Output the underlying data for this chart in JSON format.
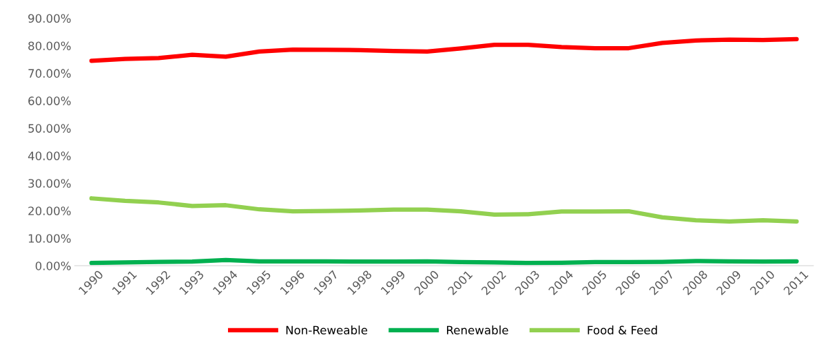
{
  "chart_data": {
    "type": "line",
    "categories": [
      "1990",
      "1991",
      "1992",
      "1993",
      "1994",
      "1995",
      "1996",
      "1997",
      "1998",
      "1999",
      "2000",
      "2001",
      "2002",
      "2003",
      "2004",
      "2005",
      "2006",
      "2007",
      "2008",
      "2009",
      "2010",
      "2011"
    ],
    "series": [
      {
        "name": "Non-Reweable",
        "color": "#ff0000",
        "values": [
          74.5,
          75.2,
          75.5,
          76.7,
          76.0,
          77.9,
          78.6,
          78.5,
          78.4,
          78.1,
          77.9,
          79.0,
          80.3,
          80.3,
          79.5,
          79.1,
          79.1,
          81.0,
          81.9,
          82.2,
          82.1,
          82.4
        ]
      },
      {
        "name": "Renewable",
        "color": "#00b050",
        "values": [
          1.0,
          1.2,
          1.4,
          1.5,
          2.1,
          1.6,
          1.6,
          1.6,
          1.5,
          1.5,
          1.6,
          1.3,
          1.2,
          1.0,
          1.1,
          1.3,
          1.3,
          1.4,
          1.7,
          1.6,
          1.5,
          1.6
        ]
      },
      {
        "name": "Food & Feed",
        "color": "#92d050",
        "values": [
          24.5,
          23.6,
          23.0,
          21.7,
          22.0,
          20.5,
          19.8,
          19.9,
          20.1,
          20.4,
          20.4,
          19.8,
          18.6,
          18.7,
          19.7,
          19.7,
          19.8,
          17.6,
          16.5,
          16.1,
          16.5,
          16.1
        ]
      }
    ],
    "ylim": [
      0,
      90
    ],
    "yticks": [
      {
        "value": 0,
        "label": "0.00%"
      },
      {
        "value": 10,
        "label": "10.00%"
      },
      {
        "value": 20,
        "label": "20.00%"
      },
      {
        "value": 30,
        "label": "30.00%"
      },
      {
        "value": 40,
        "label": "40.00%"
      },
      {
        "value": 50,
        "label": "50.00%"
      },
      {
        "value": 60,
        "label": "60.00%"
      },
      {
        "value": 70,
        "label": "70.00%"
      },
      {
        "value": 80,
        "label": "80.00%"
      },
      {
        "value": 90,
        "label": "90.00%"
      }
    ],
    "grid": false,
    "legend": "bottom",
    "marker": "none",
    "line_style": "solid"
  }
}
